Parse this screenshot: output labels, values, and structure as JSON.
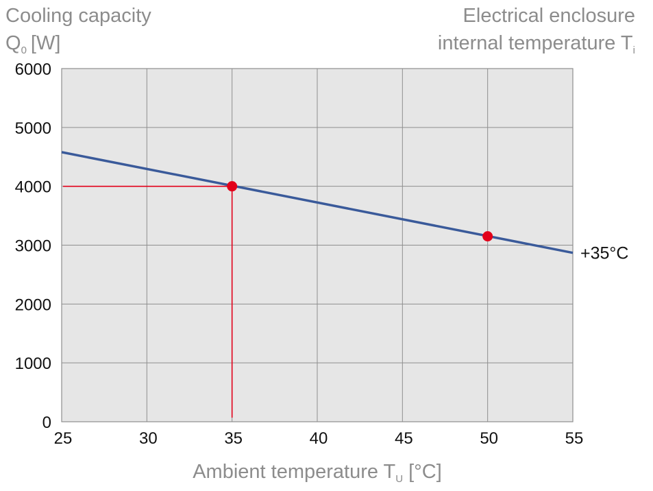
{
  "chart_data": {
    "type": "line",
    "ylabel_top_line": "Cooling capacity",
    "ylabel_symbol": "Q",
    "ylabel_subscript": "0",
    "ylabel_unit": "[W]",
    "legend_title_line1": "Electrical enclosure",
    "legend_title_line2": "internal temperature T",
    "legend_title_subscript": "i",
    "xlabel_main": "Ambient temperature T",
    "xlabel_subscript": "U",
    "xlabel_unit": "[°C]",
    "xlim": [
      25,
      55
    ],
    "ylim": [
      0,
      6000
    ],
    "x_ticks": [
      25,
      30,
      35,
      40,
      45,
      50,
      55
    ],
    "y_ticks": [
      0,
      1000,
      2000,
      3000,
      4000,
      5000,
      6000
    ],
    "grid": true,
    "series": [
      {
        "name": "+35°C",
        "x": [
          25,
          55
        ],
        "y": [
          4580,
          2870
        ],
        "markers": [
          {
            "x": 35,
            "y": 4000
          },
          {
            "x": 50,
            "y": 3150
          }
        ]
      }
    ],
    "guide": {
      "x": 35,
      "y": 4000
    },
    "colors": {
      "line": "#3a5a9a",
      "marker": "#e2001a",
      "guide": "#e2001a",
      "plot_bg": "#e6e6e6",
      "grid": "#8e8e8e",
      "grey_text": "#8c8c8c"
    }
  }
}
